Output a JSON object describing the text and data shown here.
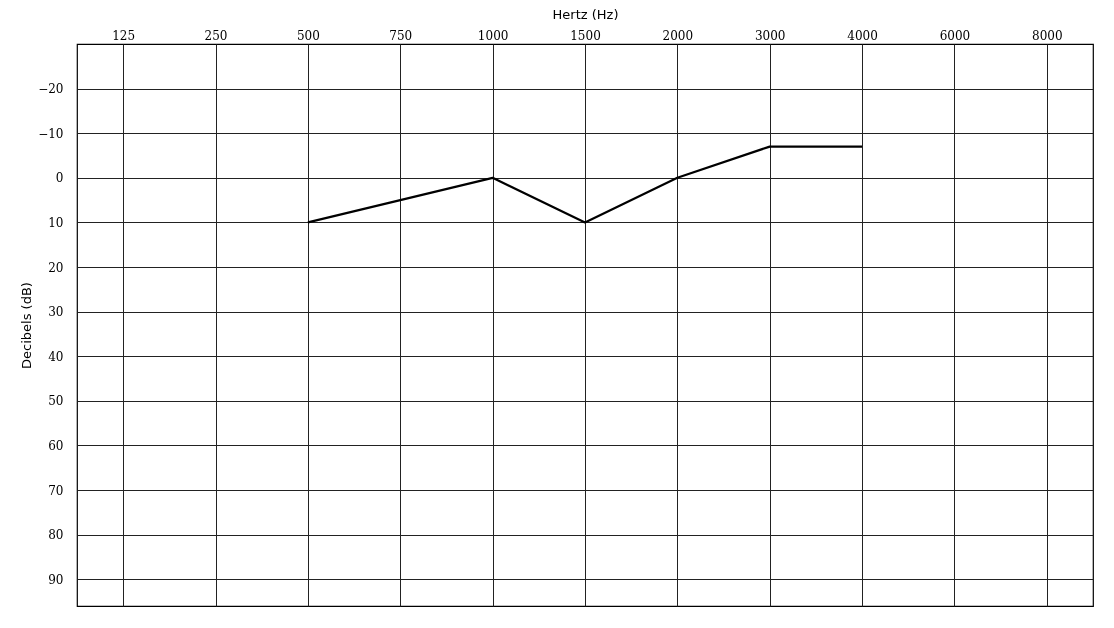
{
  "chart_data": {
    "type": "line",
    "xlabel": "Hertz (Hz)",
    "ylabel": "Decibels (dB)",
    "categories": [
      "125",
      "250",
      "500",
      "750",
      "1000",
      "1500",
      "2000",
      "3000",
      "4000",
      "6000",
      "8000"
    ],
    "series": [
      {
        "color": "#000000",
        "values": [
          null,
          null,
          10,
          5,
          0,
          10,
          0,
          -7,
          -7,
          null,
          null
        ]
      }
    ],
    "ylim": [
      96,
      -30
    ],
    "yticks": [
      -20,
      -10,
      0,
      10,
      20,
      30,
      40,
      50,
      60,
      70,
      80,
      90
    ],
    "grid": true,
    "marker": "none",
    "line_style": "solid",
    "legend": false
  }
}
